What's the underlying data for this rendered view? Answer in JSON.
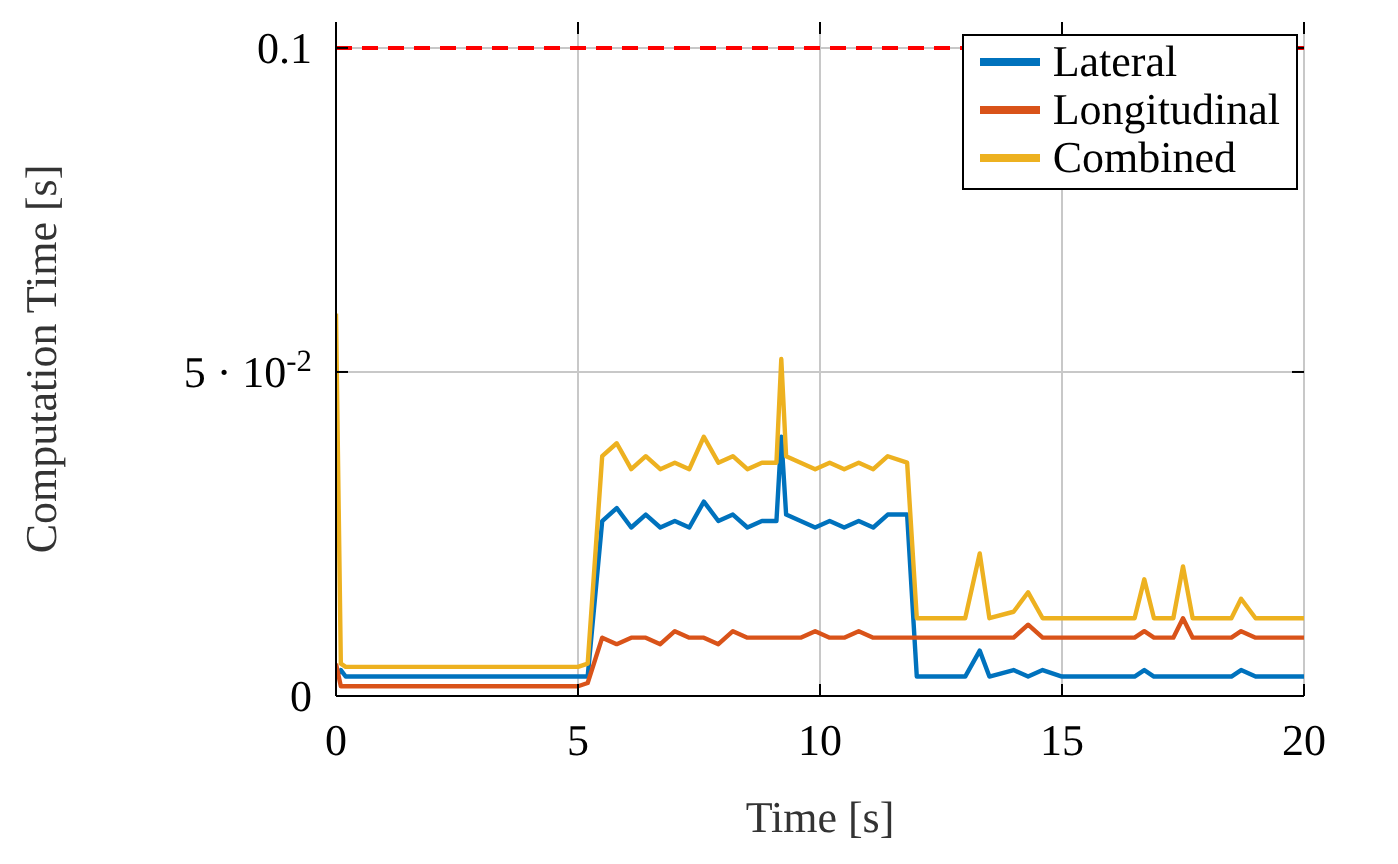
{
  "chart_data": {
    "type": "line",
    "xlabel": "Time [s]",
    "ylabel": "Computation Time [s]",
    "x": [
      0,
      0.1,
      0.2,
      1,
      2,
      3,
      4,
      5,
      5.2,
      5.5,
      5.8,
      6.1,
      6.4,
      6.7,
      7.0,
      7.3,
      7.6,
      7.9,
      8.2,
      8.5,
      8.8,
      9.1,
      9.2,
      9.3,
      9.6,
      9.9,
      10.2,
      10.5,
      10.8,
      11.1,
      11.4,
      11.8,
      12.0,
      12.5,
      13.0,
      13.3,
      13.5,
      14.0,
      14.3,
      14.6,
      15,
      15.5,
      16,
      16.5,
      16.7,
      16.9,
      17.3,
      17.5,
      17.7,
      18,
      18.5,
      18.7,
      19,
      19.5,
      20
    ],
    "series": [
      {
        "name": "Lateral",
        "color": "#0072bd",
        "values": [
          0.003,
          0.004,
          0.003,
          0.003,
          0.003,
          0.003,
          0.003,
          0.003,
          0.003,
          0.027,
          0.029,
          0.026,
          0.028,
          0.026,
          0.027,
          0.026,
          0.03,
          0.027,
          0.028,
          0.026,
          0.027,
          0.027,
          0.04,
          0.028,
          0.027,
          0.026,
          0.027,
          0.026,
          0.027,
          0.026,
          0.028,
          0.028,
          0.003,
          0.003,
          0.003,
          0.007,
          0.003,
          0.004,
          0.003,
          0.004,
          0.003,
          0.003,
          0.003,
          0.003,
          0.004,
          0.003,
          0.003,
          0.003,
          0.003,
          0.003,
          0.003,
          0.004,
          0.003,
          0.003,
          0.003
        ]
      },
      {
        "name": "Longitudinal",
        "color": "#d95319",
        "values": [
          0.005,
          0.0015,
          0.0015,
          0.0015,
          0.0015,
          0.0015,
          0.0015,
          0.0015,
          0.002,
          0.009,
          0.008,
          0.009,
          0.009,
          0.008,
          0.01,
          0.009,
          0.009,
          0.008,
          0.01,
          0.009,
          0.009,
          0.009,
          0.009,
          0.009,
          0.009,
          0.01,
          0.009,
          0.009,
          0.01,
          0.009,
          0.009,
          0.009,
          0.009,
          0.009,
          0.009,
          0.009,
          0.009,
          0.009,
          0.011,
          0.009,
          0.009,
          0.009,
          0.009,
          0.009,
          0.01,
          0.009,
          0.009,
          0.012,
          0.009,
          0.009,
          0.009,
          0.01,
          0.009,
          0.009,
          0.009
        ]
      },
      {
        "name": "Combined",
        "color": "#edb120",
        "values": [
          0.059,
          0.005,
          0.0045,
          0.0045,
          0.0045,
          0.0045,
          0.0045,
          0.0045,
          0.005,
          0.037,
          0.039,
          0.035,
          0.037,
          0.035,
          0.036,
          0.035,
          0.04,
          0.036,
          0.037,
          0.035,
          0.036,
          0.036,
          0.052,
          0.037,
          0.036,
          0.035,
          0.036,
          0.035,
          0.036,
          0.035,
          0.037,
          0.036,
          0.012,
          0.012,
          0.012,
          0.022,
          0.012,
          0.013,
          0.016,
          0.012,
          0.012,
          0.012,
          0.012,
          0.012,
          0.018,
          0.012,
          0.012,
          0.02,
          0.012,
          0.012,
          0.012,
          0.015,
          0.012,
          0.012,
          0.012
        ]
      }
    ],
    "xlim": [
      0,
      20
    ],
    "xticks": [
      0,
      5,
      10,
      15,
      20
    ],
    "ylim": [
      0,
      0.104
    ],
    "yticks": [
      0,
      {
        "value": 0.05,
        "label": "5 · 10$^{-2}$"
      },
      0.1
    ],
    "ref_lines": [
      {
        "axis": "y",
        "value": 0.1,
        "color": "#ff0000",
        "line_style": "dashed"
      }
    ],
    "grid": true,
    "legend": "top right",
    "marker": "none",
    "line_style": "solid"
  }
}
